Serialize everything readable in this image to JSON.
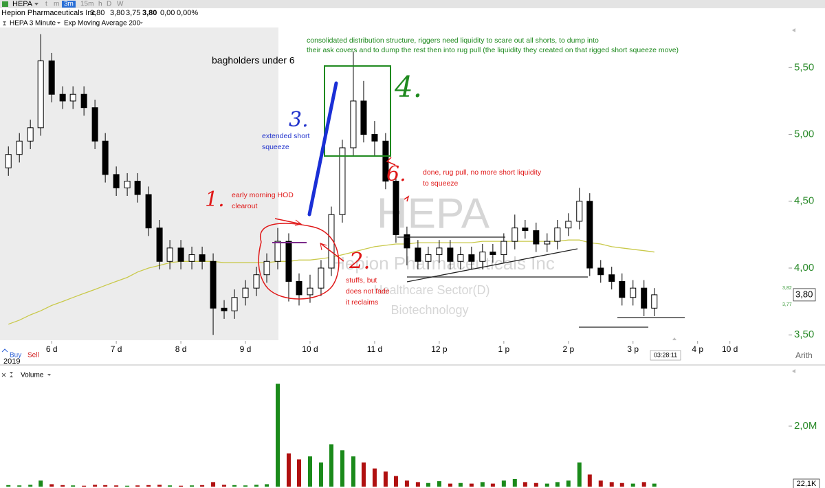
{
  "header": {
    "symbol": "HEPA",
    "timeframes": [
      "t",
      "m",
      "3m",
      "15m",
      "h",
      "D",
      "W"
    ],
    "company": "Hepion Pharmaceuticals Inc",
    "quote": [
      "3,80",
      "3,80",
      "3,75",
      "3,80",
      "0,00",
      "0,00%"
    ]
  },
  "ui": {
    "buy": "Buy",
    "sell": "Sell",
    "year": "2019",
    "scale_mode": "Arith",
    "countdown": "03:28:11",
    "volume_last": "22,1K",
    "bid": "3,82",
    "ask": "3,77"
  },
  "watermark": {
    "symbol": "HEPA",
    "company": "Hepion Pharmaceuticals Inc",
    "sector": "Healthcare Sector(D)",
    "industry": "Biotechnology"
  },
  "annotations": [
    {
      "lines": [
        "consolidated distribution structure, riggers need liquidity to scare out all shorts, to dump into",
        "their ask covers and to dump the rest then into rug pull (the liquidity they created on that rigged short squeeze move)"
      ],
      "color": "#1f8a1f"
    },
    {
      "lines": [
        "bagholders under 6"
      ],
      "color": "#000000"
    },
    {
      "lines": [
        "extended short",
        "squeeze"
      ],
      "color": "#2233cc"
    },
    {
      "lines": [
        "early morning HOD",
        "clearout"
      ],
      "color": "#e01818"
    },
    {
      "lines": [
        "stuffs, but",
        "does not fade",
        "it reclaims"
      ],
      "color": "#e01818"
    },
    {
      "lines": [
        "done, rug pull, no more short liquidity",
        "to squeeze"
      ],
      "color": "#e01818"
    },
    {
      "lines": [
        "1."
      ],
      "color": "#e01818"
    },
    {
      "lines": [
        "2."
      ],
      "color": "#e01818"
    },
    {
      "lines": [
        "3."
      ],
      "color": "#2233cc"
    },
    {
      "lines": [
        "4."
      ],
      "color": "#1f8a1f"
    },
    {
      "lines": [
        "6."
      ],
      "color": "#e01818"
    }
  ],
  "chart_data": [
    {
      "type": "candlestick",
      "name": "HEPA 3 Minute",
      "color": "#000000",
      "x": [
        5.33,
        5.5,
        5.67,
        5.83,
        6,
        6.17,
        6.33,
        6.5,
        6.67,
        6.83,
        7,
        7.17,
        7.33,
        7.5,
        7.67,
        7.83,
        8,
        8.17,
        8.33,
        8.5,
        8.67,
        8.83,
        9,
        9.17,
        9.33,
        9.5,
        9.67,
        9.83,
        10,
        10.17,
        10.33,
        10.5,
        10.67,
        10.83,
        11,
        11.17,
        11.33,
        11.5,
        11.67,
        11.83,
        12,
        12.17,
        12.33,
        12.5,
        12.67,
        12.83,
        13,
        13.17,
        13.33,
        13.5,
        13.67,
        13.83,
        14,
        14.17,
        14.33,
        14.5,
        14.67,
        14.83,
        15,
        15.17,
        15.33
      ],
      "open": [
        4.75,
        4.85,
        4.95,
        5.05,
        5.55,
        5.3,
        5.25,
        5.3,
        5.2,
        4.95,
        4.7,
        4.6,
        4.65,
        4.55,
        4.3,
        4.05,
        4.15,
        4.05,
        4.1,
        4.05,
        3.7,
        3.68,
        3.78,
        3.85,
        3.95,
        4.05,
        4.2,
        3.9,
        3.8,
        3.85,
        4.0,
        4.4,
        4.9,
        5.25,
        5.0,
        4.95,
        4.65,
        4.25,
        4.15,
        4.05,
        4.1,
        4.15,
        4.05,
        4.1,
        4.05,
        4.12,
        4.1,
        4.2,
        4.3,
        4.28,
        4.18,
        4.2,
        4.3,
        4.35,
        4.5,
        4.0,
        3.95,
        3.9,
        3.78,
        3.85,
        3.7
      ],
      "high": [
        4.91,
        5.01,
        5.11,
        5.75,
        5.61,
        5.36,
        5.36,
        5.36,
        5.26,
        5.01,
        4.76,
        4.71,
        4.71,
        4.61,
        4.36,
        4.21,
        4.21,
        4.16,
        4.16,
        4.11,
        3.76,
        3.84,
        3.91,
        4.01,
        4.11,
        4.3,
        4.26,
        3.96,
        3.95,
        4.06,
        4.46,
        4.96,
        5.62,
        5.4,
        5.1,
        5.01,
        4.71,
        4.31,
        4.21,
        4.16,
        4.21,
        4.21,
        4.16,
        4.16,
        4.18,
        4.18,
        4.26,
        4.4,
        4.36,
        4.34,
        4.26,
        4.36,
        4.41,
        4.6,
        4.56,
        4.06,
        4.01,
        3.96,
        3.91,
        3.91,
        3.85
      ],
      "low": [
        4.69,
        4.79,
        4.89,
        4.99,
        5.24,
        5.19,
        5.19,
        5.14,
        4.89,
        4.64,
        4.54,
        4.54,
        4.49,
        4.24,
        3.99,
        3.99,
        3.99,
        3.99,
        3.99,
        3.5,
        3.62,
        3.62,
        3.72,
        3.79,
        3.89,
        3.99,
        3.75,
        3.72,
        3.74,
        3.79,
        3.94,
        4.34,
        4.84,
        4.94,
        4.84,
        4.59,
        4.19,
        4.02,
        3.99,
        3.99,
        4.04,
        3.99,
        3.99,
        3.99,
        3.99,
        4.04,
        4.04,
        4.14,
        4.22,
        4.12,
        4.12,
        4.14,
        4.24,
        4.29,
        3.94,
        3.89,
        3.84,
        3.72,
        3.72,
        3.64,
        3.64
      ],
      "close": [
        4.85,
        4.95,
        5.05,
        5.55,
        5.3,
        5.25,
        5.3,
        5.2,
        4.95,
        4.7,
        4.6,
        4.65,
        4.55,
        4.3,
        4.05,
        4.15,
        4.05,
        4.1,
        4.05,
        3.7,
        3.68,
        3.78,
        3.85,
        3.95,
        4.05,
        4.2,
        3.9,
        3.8,
        3.85,
        4.0,
        4.4,
        4.9,
        5.25,
        5.0,
        4.95,
        4.65,
        4.25,
        4.15,
        4.05,
        4.1,
        4.15,
        4.05,
        4.1,
        4.05,
        4.12,
        4.1,
        4.2,
        4.3,
        4.28,
        4.18,
        4.2,
        4.3,
        4.35,
        4.5,
        4.0,
        3.95,
        3.9,
        3.78,
        3.85,
        3.7,
        3.8
      ],
      "ema": {
        "name": "Exp Moving Average 200",
        "color": "#c9c94a",
        "values": [
          3.58,
          3.61,
          3.65,
          3.68,
          3.72,
          3.75,
          3.78,
          3.81,
          3.84,
          3.87,
          3.9,
          3.93,
          3.97,
          4.0,
          4.02,
          4.04,
          4.05,
          4.05,
          4.05,
          4.05,
          4.04,
          4.04,
          4.04,
          4.04,
          4.04,
          4.05,
          4.05,
          4.06,
          4.06,
          4.07,
          4.08,
          4.1,
          4.12,
          4.14,
          4.16,
          4.17,
          4.18,
          4.18,
          4.19,
          4.19,
          4.19,
          4.19,
          4.19,
          4.19,
          4.2,
          4.2,
          4.2,
          4.2,
          4.2,
          4.2,
          4.2,
          4.2,
          4.21,
          4.21,
          4.19,
          4.18,
          4.16,
          4.15,
          4.14,
          4.13,
          4.12
        ]
      },
      "last_price": {
        "value": 3.8,
        "label": "3,80"
      },
      "xlim": [
        5.2,
        17.44
      ],
      "xticks": [
        {
          "value": 6,
          "label": "6 d"
        },
        {
          "value": 7,
          "label": "7 d"
        },
        {
          "value": 8,
          "label": "8 d"
        },
        {
          "value": 9,
          "label": "9 d"
        },
        {
          "value": 10,
          "label": "10 d"
        },
        {
          "value": 11,
          "label": "11 d"
        },
        {
          "value": 12,
          "label": "12 p"
        },
        {
          "value": 13,
          "label": "1 p"
        },
        {
          "value": 14,
          "label": "2 p"
        },
        {
          "value": 15,
          "label": "3 p"
        },
        {
          "value": 16,
          "label": "4 p"
        },
        {
          "value": 16.5,
          "label": "10 d"
        }
      ],
      "ylim": [
        3.46,
        5.8
      ],
      "yticks": [
        {
          "value": 3.5,
          "label": "3,50"
        },
        {
          "value": 4,
          "label": "4,00"
        },
        {
          "value": 4.5,
          "label": "4,50"
        },
        {
          "value": 5,
          "label": "5,00"
        },
        {
          "value": 5.5,
          "label": "5,50"
        }
      ]
    },
    {
      "type": "bar",
      "name": "Volume",
      "up_color": "#1a8a1a",
      "down_color": "#b01010",
      "values": [
        50000,
        40000,
        60000,
        200000,
        80000,
        50000,
        40000,
        30000,
        60000,
        50000,
        40000,
        30000,
        40000,
        50000,
        60000,
        40000,
        30000,
        40000,
        50000,
        150000,
        60000,
        50000,
        40000,
        60000,
        80000,
        3400000,
        1100000,
        900000,
        1000000,
        800000,
        1400000,
        1200000,
        1000000,
        800000,
        600000,
        500000,
        350000,
        200000,
        150000,
        120000,
        180000,
        100000,
        120000,
        100000,
        150000,
        100000,
        200000,
        250000,
        150000,
        120000,
        100000,
        150000,
        200000,
        800000,
        400000,
        200000,
        150000,
        120000,
        100000,
        150000,
        100000
      ],
      "ylim": [
        0,
        3500000
      ],
      "yticks": [
        {
          "value": 2000000,
          "label": "2,0M"
        }
      ]
    }
  ]
}
